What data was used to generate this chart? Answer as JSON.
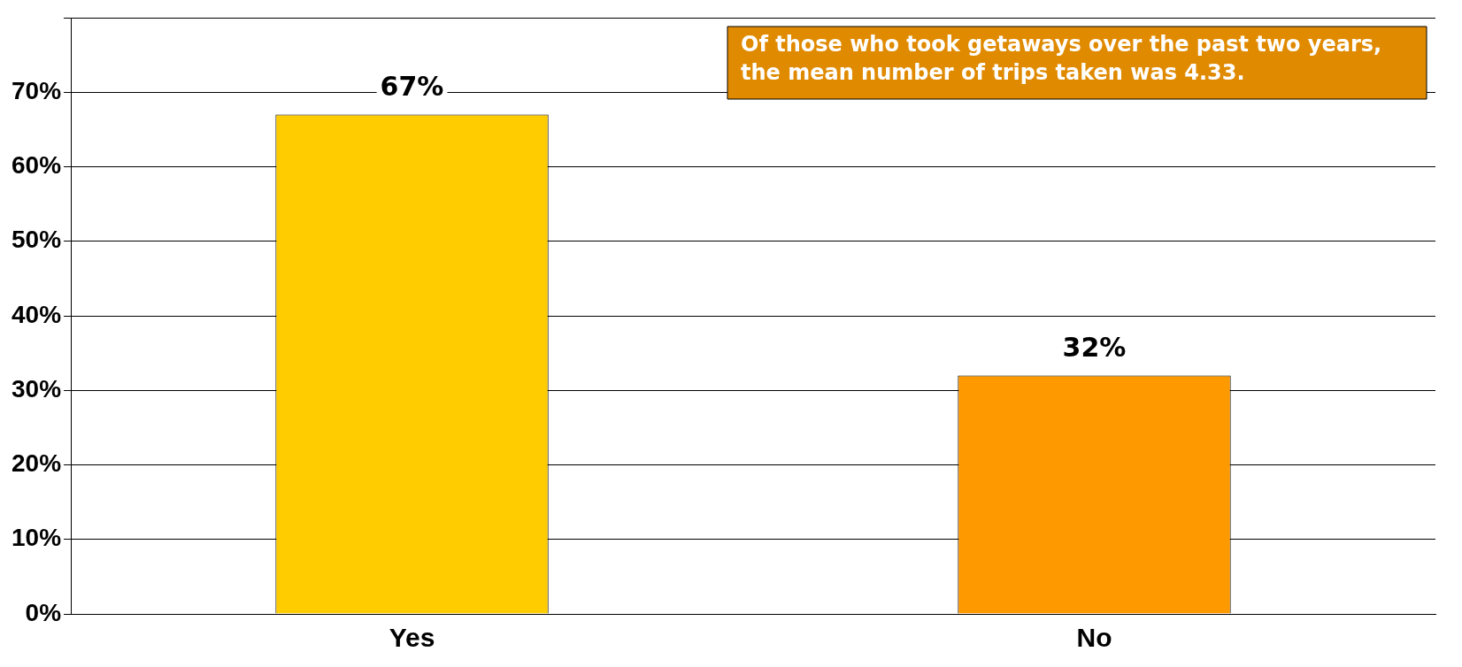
{
  "chart_data": {
    "type": "bar",
    "categories": [
      "Yes",
      "No"
    ],
    "values": [
      67,
      32
    ],
    "colors": [
      "#ffcc00",
      "#ff9900"
    ],
    "value_labels": [
      "67%",
      "32%"
    ],
    "ylim": [
      0,
      80
    ],
    "yticks": [
      {
        "value": 0,
        "label": "0%"
      },
      {
        "value": 10,
        "label": "10%"
      },
      {
        "value": 20,
        "label": "20%"
      },
      {
        "value": 30,
        "label": "30%"
      },
      {
        "value": 40,
        "label": "40%"
      },
      {
        "value": 50,
        "label": "50%"
      },
      {
        "value": 60,
        "label": "60%"
      },
      {
        "value": 70,
        "label": "70%"
      },
      {
        "value": 80,
        "label": null
      }
    ],
    "grid": "y",
    "legend": false,
    "annotations": [
      "Of those who took getaways over the past two years, the mean number of trips taken was 4.33."
    ]
  }
}
